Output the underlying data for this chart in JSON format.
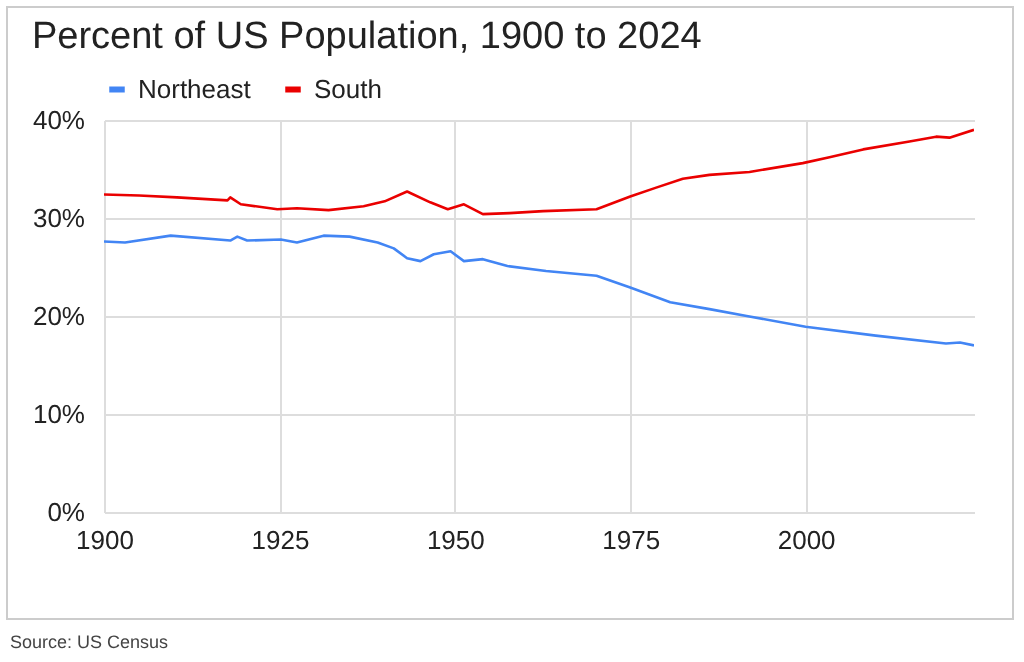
{
  "chart_data": {
    "type": "line",
    "title": "Percent of US Population, 1900 to 2024",
    "annotations": [
      "Source: US Census"
    ],
    "xlim": [
      1900,
      2024
    ],
    "xticks": [
      1900,
      1925,
      1950,
      1975,
      2000
    ],
    "ylim": [
      0,
      40
    ],
    "yticks": [
      {
        "value": 0,
        "label": "0%"
      },
      {
        "value": 10,
        "label": "10%"
      },
      {
        "value": 20,
        "label": "20%"
      },
      {
        "value": 30,
        "label": "30%"
      },
      {
        "value": 40,
        "label": "40%"
      }
    ],
    "grid": true,
    "legend": "top",
    "marker": "none",
    "series": [
      {
        "name": "Northeast",
        "color": "#4285f4",
        "x": [
          1900,
          1903,
          1909.5,
          1918,
          1919,
          1920.4,
          1925.2,
          1927.5,
          1931.3,
          1935,
          1939,
          1941.3,
          1943.2,
          1945.1,
          1947,
          1949.4,
          1951.3,
          1954,
          1957.5,
          1963,
          1970.2,
          1975,
          1980.7,
          1986.3,
          1991.6,
          2000,
          2010,
          2020,
          2022,
          2024
        ],
        "values": [
          27.6,
          27.5,
          28.2,
          27.7,
          28.1,
          27.7,
          27.8,
          27.5,
          28.2,
          28.1,
          27.5,
          26.9,
          25.9,
          25.6,
          26.3,
          26.6,
          25.6,
          25.8,
          25.1,
          24.6,
          24.1,
          22.9,
          21.4,
          20.7,
          20.0,
          18.9,
          18.0,
          17.2,
          17.3,
          17.0
        ]
      },
      {
        "name": "South",
        "color": "#ea0000",
        "x": [
          1900,
          1905,
          1910.4,
          1917.6,
          1918,
          1919.5,
          1924.7,
          1927.5,
          1932,
          1937,
          1940,
          1943.2,
          1946.5,
          1949,
          1951.3,
          1954,
          1957.8,
          1962.6,
          1970.2,
          1975,
          1978.7,
          1982.5,
          1986.3,
          1992,
          1999.6,
          2003.4,
          2008.2,
          2014.8,
          2018.6,
          2020.5,
          2024
        ],
        "values": [
          32.4,
          32.3,
          32.1,
          31.8,
          32.1,
          31.4,
          30.9,
          31.0,
          30.8,
          31.2,
          31.7,
          32.7,
          31.6,
          30.9,
          31.4,
          30.4,
          30.5,
          30.7,
          30.9,
          32.2,
          33.1,
          34.0,
          34.4,
          34.7,
          35.6,
          36.2,
          37.0,
          37.8,
          38.3,
          38.2,
          39.0
        ]
      }
    ]
  }
}
